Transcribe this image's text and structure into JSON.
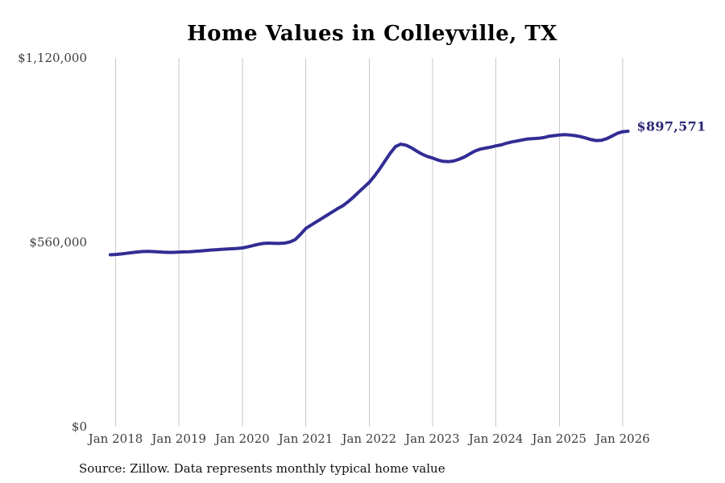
{
  "chart_data": {
    "type": "line",
    "title": "Home Values in Colleyville, TX",
    "source_note": "Source: Zillow. Data represents monthly typical home value",
    "xlabel": "",
    "ylabel": "",
    "ylim": [
      0,
      1120000
    ],
    "grid": "vertical-only",
    "legend": "none",
    "x_tick_labels": [
      "Jan 2018",
      "Jan 2019",
      "Jan 2020",
      "Jan 2021",
      "Jan 2022",
      "Jan 2023",
      "Jan 2024",
      "Jan 2025",
      "Jan 2026"
    ],
    "y_ticks": [
      {
        "label": "$0",
        "value": 0
      },
      {
        "label": "$560,000",
        "value": 560000
      },
      {
        "label": "$1,120,000",
        "value": 1120000
      }
    ],
    "end_label": "$897,571",
    "end_value": 897571,
    "first_jan_index": 1,
    "series": [
      {
        "name": "Monthly typical home value",
        "start": "Dec 2017",
        "interval": "monthly",
        "values": [
          522000,
          523000,
          524500,
          526500,
          528500,
          530500,
          532000,
          532500,
          532000,
          531000,
          530000,
          529500,
          529500,
          530500,
          531000,
          531500,
          532500,
          533500,
          535000,
          536500,
          537500,
          538500,
          539500,
          540500,
          541500,
          543000,
          546000,
          550000,
          554000,
          556500,
          557500,
          557000,
          556500,
          557500,
          561000,
          568000,
          584000,
          602000,
          612000,
          622000,
          632000,
          642000,
          652000,
          662000,
          671000,
          683000,
          697000,
          712000,
          727000,
          742000,
          761000,
          783000,
          807000,
          831000,
          851000,
          858000,
          855000,
          847000,
          837000,
          828000,
          821000,
          816000,
          810000,
          806000,
          805000,
          807000,
          812000,
          819000,
          828000,
          837000,
          843000,
          846000,
          849000,
          853000,
          856000,
          861000,
          865000,
          868000,
          871000,
          874000,
          875000,
          876000,
          878000,
          882000,
          884000,
          886000,
          887000,
          886000,
          884000,
          881000,
          877000,
          872000,
          869000,
          870000,
          875000,
          883000,
          891000,
          896000,
          897571
        ]
      }
    ],
    "colors": {
      "line": "#312d94",
      "grid": "#c9c9c9",
      "axis_text": "#3d3d3d",
      "title_text": "#000000",
      "end_label_text": "#2b2876",
      "source_text": "#111111",
      "background": "#ffffff"
    }
  }
}
